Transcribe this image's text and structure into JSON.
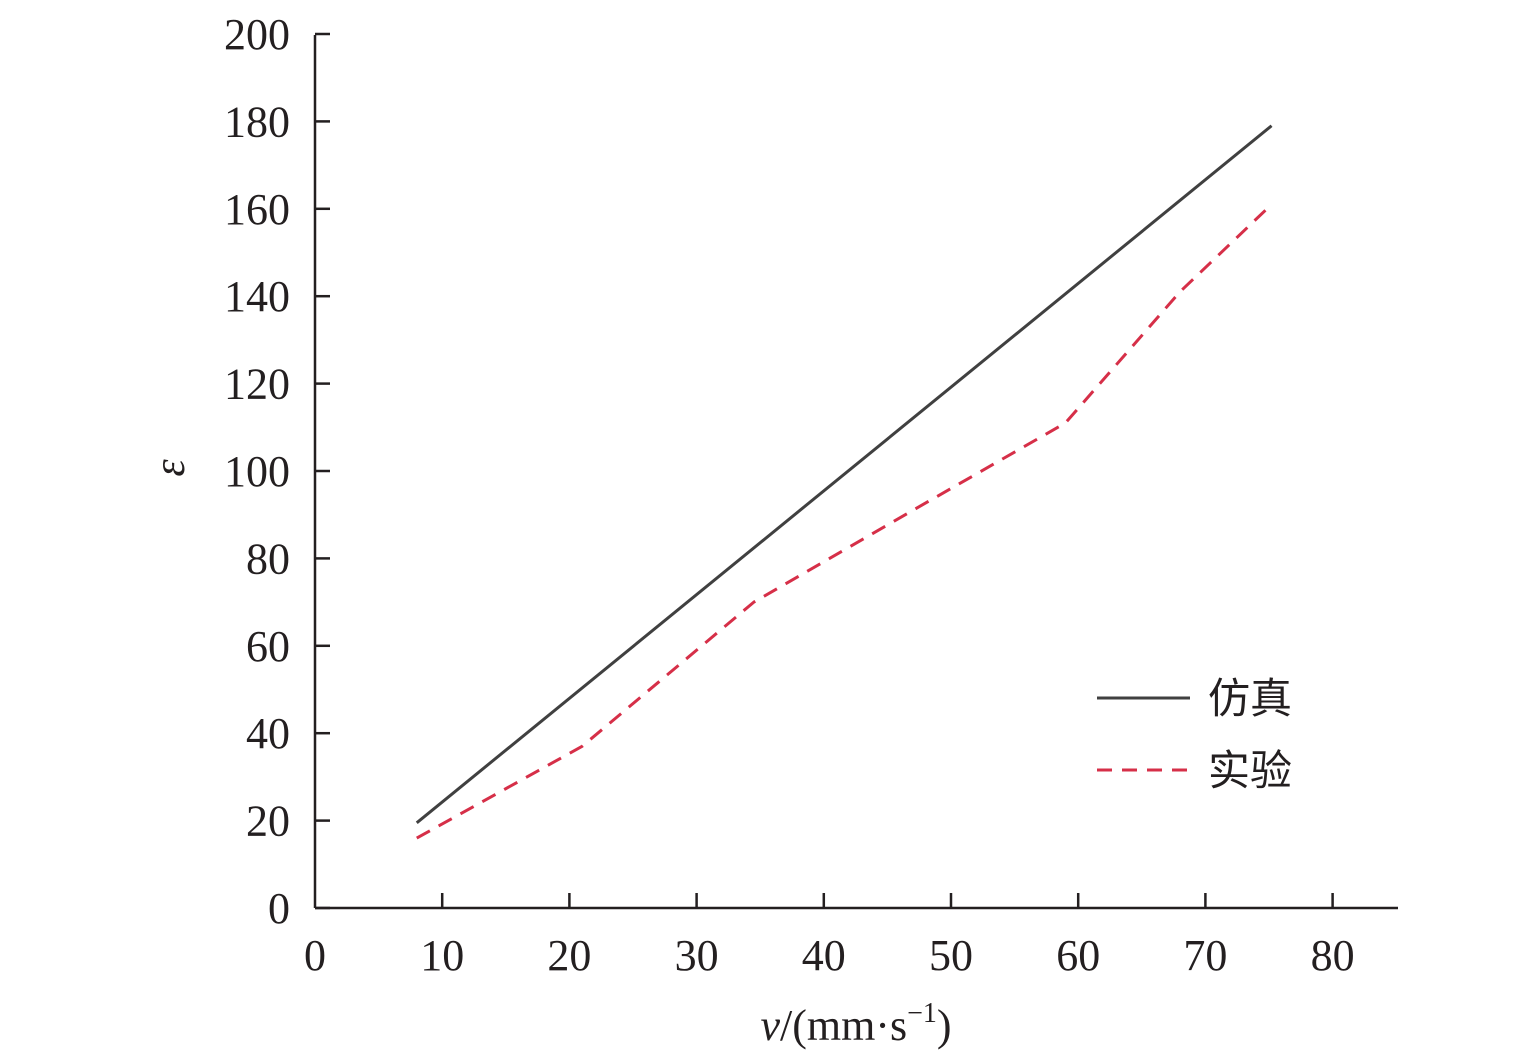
{
  "chart_data": {
    "type": "line",
    "xlabel_parts": {
      "var": "v",
      "unit_open": "/(mm·s",
      "exp": "−1",
      "unit_close": ")"
    },
    "ylabel": "ε",
    "xlim": [
      0,
      85
    ],
    "ylim": [
      0,
      200
    ],
    "x_ticks": [
      "0",
      "10",
      "20",
      "30",
      "40",
      "50",
      "60",
      "70",
      "80"
    ],
    "y_ticks": [
      "0",
      "20",
      "40",
      "60",
      "80",
      "100",
      "120",
      "140",
      "160",
      "180",
      "200"
    ],
    "series": [
      {
        "name": "仿真",
        "color": "#404040",
        "style": "solid",
        "x": [
          8,
          75.2
        ],
        "y": [
          19.5,
          179
        ]
      },
      {
        "name": "实验",
        "color": "#d62f48",
        "style": "dashed",
        "x": [
          8,
          21,
          34.5,
          47,
          59,
          68,
          75.2
        ],
        "y": [
          16,
          37,
          70,
          91,
          111,
          141,
          161
        ]
      }
    ],
    "legend_position": "lower-right",
    "grid": false
  }
}
